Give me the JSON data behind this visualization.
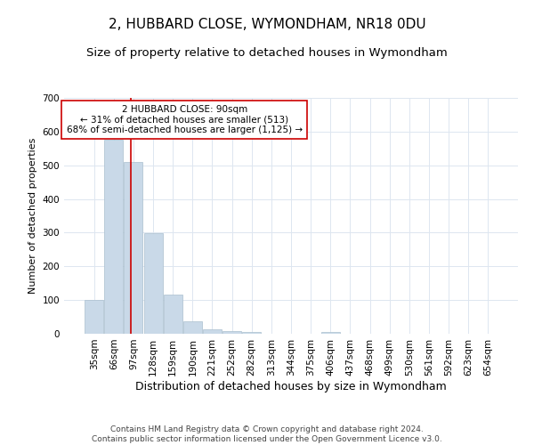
{
  "title": "2, HUBBARD CLOSE, WYMONDHAM, NR18 0DU",
  "subtitle": "Size of property relative to detached houses in Wymondham",
  "xlabel": "Distribution of detached houses by size in Wymondham",
  "ylabel": "Number of detached properties",
  "categories": [
    "35sqm",
    "66sqm",
    "97sqm",
    "128sqm",
    "159sqm",
    "190sqm",
    "221sqm",
    "252sqm",
    "282sqm",
    "313sqm",
    "344sqm",
    "375sqm",
    "406sqm",
    "437sqm",
    "468sqm",
    "499sqm",
    "530sqm",
    "561sqm",
    "592sqm",
    "623sqm",
    "654sqm"
  ],
  "values": [
    100,
    575,
    510,
    298,
    115,
    36,
    14,
    9,
    6,
    0,
    0,
    0,
    6,
    0,
    0,
    0,
    0,
    0,
    0,
    0,
    0
  ],
  "bar_color": "#c9d9e8",
  "bar_edge_color": "#aabfcf",
  "vline_x": 1.85,
  "vline_color": "#cc0000",
  "annotation_text": "2 HUBBARD CLOSE: 90sqm\n← 31% of detached houses are smaller (513)\n68% of semi-detached houses are larger (1,125) →",
  "annotation_box_color": "#ffffff",
  "annotation_box_edge": "#cc0000",
  "ylim": [
    0,
    700
  ],
  "yticks": [
    0,
    100,
    200,
    300,
    400,
    500,
    600,
    700
  ],
  "footer": "Contains HM Land Registry data © Crown copyright and database right 2024.\nContains public sector information licensed under the Open Government Licence v3.0.",
  "bg_color": "#ffffff",
  "grid_color": "#dde6f0",
  "title_fontsize": 11,
  "subtitle_fontsize": 9.5,
  "xlabel_fontsize": 9,
  "ylabel_fontsize": 8,
  "tick_fontsize": 7.5,
  "footer_fontsize": 6.5,
  "annot_fontsize": 7.5
}
